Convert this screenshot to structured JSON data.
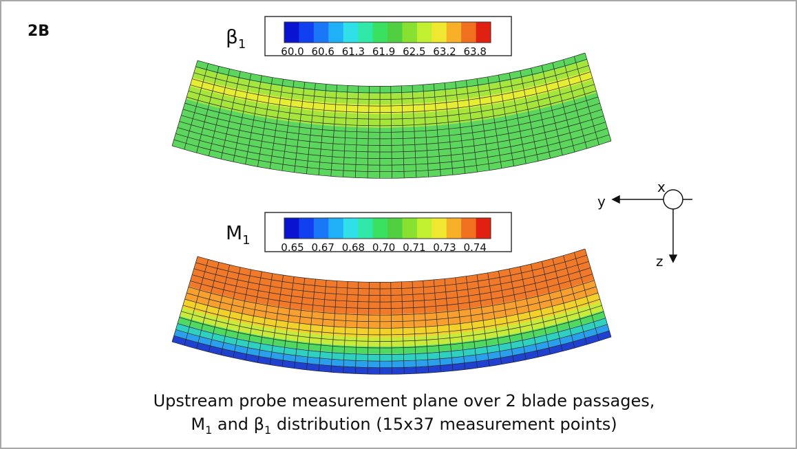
{
  "panel_label": "2B",
  "plots": [
    {
      "symbol": "β",
      "subscript": "1",
      "colorbar_labels": [
        "60.0",
        "60.6",
        "61.3",
        "61.9",
        "62.5",
        "63.2",
        "63.8"
      ]
    },
    {
      "symbol": "M",
      "subscript": "1",
      "colorbar_labels": [
        "0.65",
        "0.67",
        "0.68",
        "0.70",
        "0.71",
        "0.73",
        "0.74"
      ]
    }
  ],
  "axes": {
    "x": "x",
    "y": "y",
    "z": "z"
  },
  "caption": {
    "line1": "Upstream probe measurement plane over 2 blade passages,",
    "line2": [
      {
        "text": "M"
      },
      {
        "text": "1",
        "sub": true
      },
      {
        "text": " and "
      },
      {
        "text": "β"
      },
      {
        "text": "1",
        "sub": true
      },
      {
        "text": " distribution (15x37 measurement points)"
      }
    ]
  }
}
